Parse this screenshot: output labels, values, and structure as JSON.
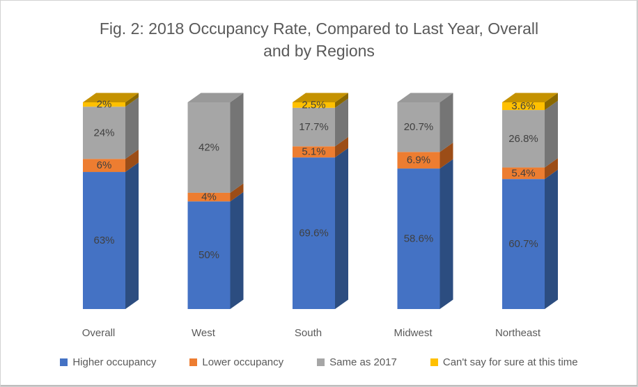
{
  "chart_data": {
    "type": "bar",
    "subtype": "3d-stacked-column-normalized-100",
    "title": "Fig. 2: 2018 Occupancy Rate, Compared to Last Year, Overall and by Regions",
    "title_line1": "Fig. 2: 2018 Occupancy Rate, Compared to Last Year, Overall",
    "title_line2": "and by Regions",
    "categories": [
      "Overall",
      "West",
      "South",
      "Midwest",
      "Northeast"
    ],
    "series": [
      {
        "name": "Higher occupancy",
        "color": "#4472C4",
        "side_color": "#2C4D80",
        "top_color": "#33589B",
        "values": [
          63,
          50,
          69.6,
          58.6,
          60.7
        ],
        "labels": [
          "63%",
          "50%",
          "69.6%",
          "58.6%",
          "60.7%"
        ]
      },
      {
        "name": "Lower occupancy",
        "color": "#ED7D31",
        "side_color": "#9C4D17",
        "top_color": "#C4621C",
        "values": [
          6,
          4,
          5.1,
          6.9,
          5.4
        ],
        "labels": [
          "6%",
          "4%",
          "5.1%",
          "6.9%",
          "5.4%"
        ]
      },
      {
        "name": "Same as 2017",
        "color": "#A6A6A6",
        "side_color": "#757575",
        "top_color": "#999999",
        "values": [
          24,
          42,
          17.7,
          20.7,
          26.8
        ],
        "labels": [
          "24%",
          "42%",
          "17.7%",
          "20.7%",
          "26.8%"
        ]
      },
      {
        "name": "Can't say for sure at this time",
        "color": "#FFC000",
        "side_color": "#8A6800",
        "top_color": "#C59200",
        "values": [
          2,
          0,
          2.5,
          0,
          3.6
        ],
        "labels": [
          "2%",
          "",
          "2.5%",
          "",
          "3.6%"
        ]
      }
    ],
    "legend_position": "bottom",
    "grid": false,
    "value_axis_visible": false,
    "label_color": "#404040",
    "axis_text_color": "#595959",
    "title_color": "#595959",
    "background": "#FFFFFF"
  }
}
